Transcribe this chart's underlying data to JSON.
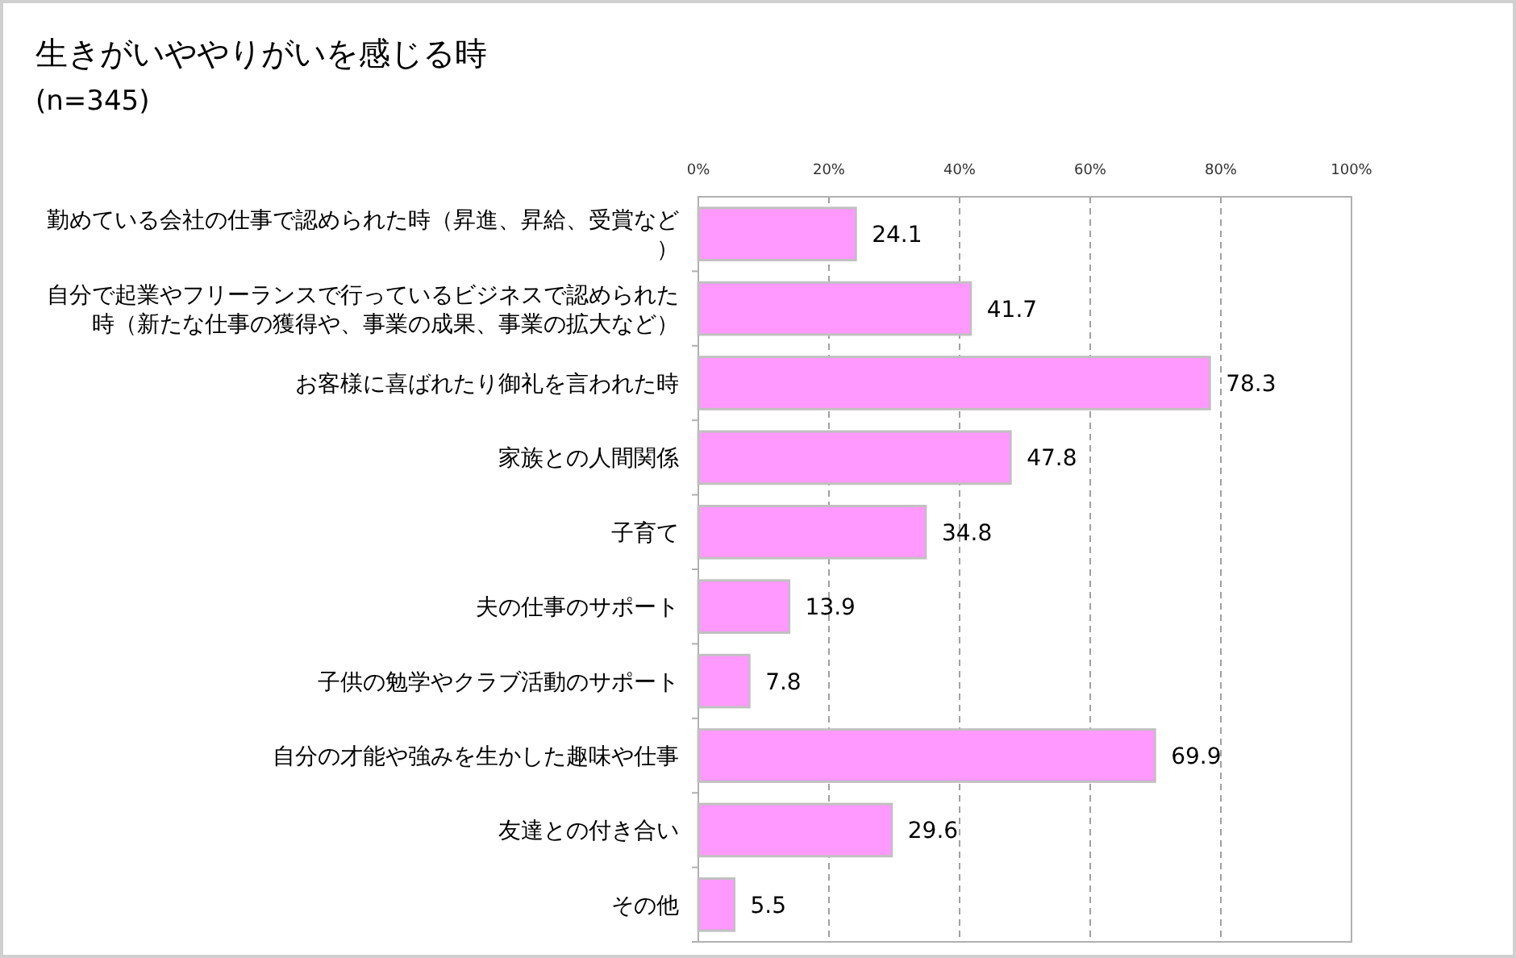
{
  "chart_data": {
    "type": "bar",
    "orientation": "horizontal",
    "title": "生きがいややりがいを感じる時",
    "subtitle": "(n=345)",
    "categories": [
      "勤めている会社の仕事で認められた時（昇進、昇給、受賞など）",
      "自分で起業やフリーランスで行っているビジネスで認められた時（新たな仕事の獲得や、事業の成果、事業の拡大など）",
      "お客様に喜ばれたり御礼を言われた時",
      "家族との人間関係",
      "子育て",
      "夫の仕事のサポート",
      "子供の勉学やクラブ活動のサポート",
      "自分の才能や強みを生かした趣味や仕事",
      "友達との付き合い",
      "その他"
    ],
    "values": [
      24.1,
      41.7,
      78.3,
      47.8,
      34.8,
      13.9,
      7.8,
      69.9,
      29.6,
      5.5
    ],
    "color": "#ff99ff",
    "xlim": [
      0,
      100
    ],
    "xticks": [
      {
        "value": 0,
        "label": "0%"
      },
      {
        "value": 20,
        "label": "20%"
      },
      {
        "value": 40,
        "label": "40%"
      },
      {
        "value": 60,
        "label": "60%"
      },
      {
        "value": 80,
        "label": "80%"
      },
      {
        "value": 100,
        "label": "100%"
      }
    ],
    "grid": "x",
    "line_style": "dashed",
    "data_labels": true
  }
}
